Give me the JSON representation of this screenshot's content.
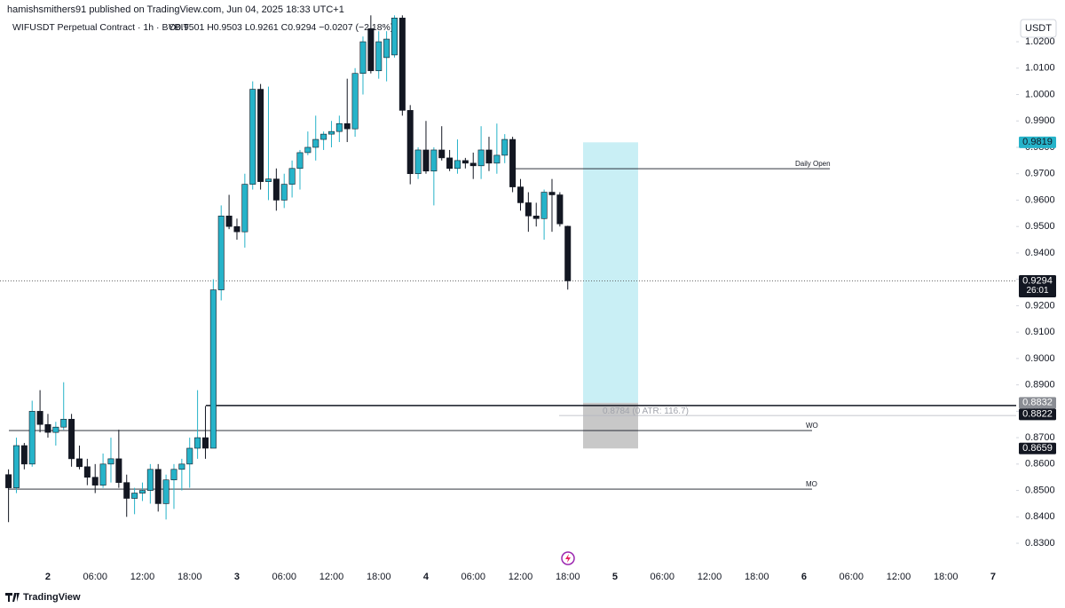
{
  "header": "hamishsmithers91 published on TradingView.com, Jun 04, 2025 18:33 UTC+1",
  "footer": "TradingView",
  "chart_data": {
    "type": "candlestick",
    "title": "WIFUSDT Perpetual Contract · 1h · BYBIT",
    "legend": "O0.9501 H0.9503 L0.9261 C0.9294 −0.0207 (−2.18%)",
    "currency": "USDT",
    "categories": [
      null,
      null,
      null,
      null,
      null,
      "2",
      null,
      null,
      null,
      null,
      null,
      "06:00",
      null,
      null,
      null,
      null,
      null,
      "12:00",
      null,
      null,
      null,
      null,
      null,
      "18:00",
      null,
      null,
      null,
      null,
      null,
      "3",
      null,
      null,
      null,
      null,
      null,
      "06:00",
      null,
      null,
      null,
      null,
      null,
      "12:00",
      null,
      null,
      null,
      null,
      null,
      "18:00",
      null,
      null,
      null,
      null,
      null,
      "4",
      null,
      null,
      null,
      null,
      null,
      "06:00",
      null,
      null,
      null,
      null,
      null,
      "12:00",
      null,
      null,
      null,
      null,
      null,
      "18:00",
      null,
      null,
      null,
      null,
      null,
      "5",
      null,
      null,
      null,
      null,
      null,
      "06:00",
      null,
      null,
      null,
      null,
      null,
      "12:00",
      null,
      null,
      null,
      null,
      null,
      "18:00",
      null,
      null,
      null,
      null,
      null,
      "6",
      null,
      null,
      null,
      null,
      null,
      "06:00",
      null,
      null,
      null,
      null,
      null,
      "12:00",
      null,
      null,
      null,
      null,
      null,
      "18:00",
      null,
      null,
      null,
      null,
      null,
      "7",
      null,
      null
    ],
    "open": [
      0.856,
      0.851,
      0.867,
      0.86,
      0.88,
      0.875,
      0.872,
      0.874,
      0.877,
      0.862,
      0.859,
      0.855,
      0.852,
      0.86,
      0.862,
      0.853,
      0.847,
      0.849,
      0.85,
      0.858,
      0.845,
      0.854,
      0.858,
      0.86,
      0.866,
      0.87,
      0.866,
      0.926,
      0.954,
      0.95,
      0.948,
      0.966,
      1.002,
      0.967,
      0.968,
      0.96,
      0.966,
      0.972,
      0.978,
      0.98,
      0.983,
      0.985,
      0.986,
      0.989,
      0.987,
      1.008,
      1.025,
      1.009,
      1.014,
      1.015,
      1.029,
      0.994,
      0.97,
      0.979,
      0.971,
      0.979,
      0.976,
      0.972,
      0.975,
      0.974,
      0.973,
      0.979,
      0.974,
      0.977,
      0.983,
      0.965,
      0.959,
      0.954,
      0.953,
      0.963,
      0.962,
      0.9501,
      null,
      null,
      null,
      null,
      null,
      null,
      null,
      null,
      null,
      null,
      null,
      null,
      null,
      null,
      null,
      null,
      null,
      null,
      null,
      null,
      null,
      null,
      null,
      null,
      null,
      null,
      null,
      null,
      null,
      null,
      null,
      null,
      null,
      null,
      null,
      null,
      null,
      null,
      null,
      null,
      null,
      null,
      null,
      null,
      null,
      null,
      null,
      null,
      null,
      null,
      null,
      null,
      null,
      null,
      null,
      null
    ],
    "high": [
      0.858,
      0.87,
      0.868,
      0.884,
      0.888,
      0.879,
      0.876,
      0.891,
      0.879,
      0.867,
      0.862,
      0.86,
      0.864,
      0.87,
      0.873,
      0.856,
      0.851,
      0.853,
      0.86,
      0.86,
      0.856,
      0.86,
      0.862,
      0.87,
      0.888,
      0.882,
      0.93,
      0.958,
      0.962,
      0.953,
      0.97,
      1.005,
      1.004,
      1.003,
      0.972,
      0.97,
      0.975,
      0.979,
      0.986,
      0.992,
      0.986,
      0.99,
      0.992,
      1.006,
      1.01,
      1.022,
      1.03,
      1.024,
      1.024,
      1.03,
      1.03,
      0.996,
      0.98,
      0.99,
      0.98,
      0.988,
      0.979,
      0.983,
      0.976,
      0.978,
      0.988,
      0.984,
      0.989,
      0.985,
      0.984,
      0.968,
      0.963,
      0.959,
      0.964,
      0.968,
      0.963,
      0.9503,
      null,
      null,
      null,
      null,
      null,
      null,
      null,
      null,
      null,
      null,
      null,
      null,
      null,
      null,
      null,
      null,
      null,
      null,
      null,
      null,
      null,
      null,
      null,
      null,
      null,
      null,
      null,
      null,
      null,
      null,
      null,
      null,
      null,
      null,
      null,
      null,
      null,
      null,
      null,
      null,
      null,
      null,
      null,
      null,
      null,
      null,
      null,
      null,
      null,
      null,
      null,
      null,
      null,
      null,
      null,
      null
    ],
    "low": [
      0.838,
      0.849,
      0.858,
      0.859,
      0.872,
      0.87,
      0.867,
      0.873,
      0.859,
      0.858,
      0.852,
      0.849,
      0.851,
      0.853,
      0.851,
      0.84,
      0.841,
      0.846,
      0.845,
      0.842,
      0.839,
      0.843,
      0.85,
      0.851,
      0.862,
      0.862,
      0.866,
      0.922,
      0.949,
      0.945,
      0.942,
      0.964,
      0.964,
      0.96,
      0.956,
      0.957,
      0.961,
      0.964,
      0.977,
      0.975,
      0.979,
      0.98,
      0.982,
      0.982,
      0.984,
      1.0,
      1.008,
      1.006,
      1.005,
      1.014,
      0.992,
      0.966,
      0.968,
      0.97,
      0.958,
      0.975,
      0.971,
      0.97,
      0.972,
      0.968,
      0.968,
      0.971,
      0.97,
      0.974,
      0.963,
      0.956,
      0.948,
      0.95,
      0.945,
      0.948,
      0.95,
      0.9261,
      null,
      null,
      null,
      null,
      null,
      null,
      null,
      null,
      null,
      null,
      null,
      null,
      null,
      null,
      null,
      null,
      null,
      null,
      null,
      null,
      null,
      null,
      null,
      null,
      null,
      null,
      null,
      null,
      null,
      null,
      null,
      null,
      null,
      null,
      null,
      null,
      null,
      null,
      null,
      null,
      null,
      null,
      null,
      null,
      null,
      null,
      null,
      null,
      null,
      null,
      null,
      null,
      null,
      null,
      null,
      null
    ],
    "close": [
      0.851,
      0.867,
      0.86,
      0.88,
      0.875,
      0.872,
      0.874,
      0.877,
      0.862,
      0.859,
      0.855,
      0.852,
      0.86,
      0.862,
      0.853,
      0.847,
      0.849,
      0.85,
      0.858,
      0.845,
      0.854,
      0.858,
      0.86,
      0.866,
      0.87,
      0.866,
      0.926,
      0.954,
      0.95,
      0.948,
      0.966,
      1.002,
      0.967,
      0.968,
      0.96,
      0.966,
      0.972,
      0.978,
      0.98,
      0.983,
      0.985,
      0.986,
      0.989,
      0.987,
      1.008,
      1.02,
      1.009,
      1.02,
      1.021,
      1.029,
      0.994,
      0.97,
      0.979,
      0.971,
      0.979,
      0.976,
      0.972,
      0.975,
      0.974,
      0.973,
      0.979,
      0.974,
      0.977,
      0.983,
      0.965,
      0.959,
      0.954,
      0.953,
      0.963,
      0.962,
      0.951,
      0.9294,
      null,
      null,
      null,
      null,
      null,
      null,
      null,
      null,
      null,
      null,
      null,
      null,
      null,
      null,
      null,
      null,
      null,
      null,
      null,
      null,
      null,
      null,
      null,
      null,
      null,
      null,
      null,
      null,
      null,
      null,
      null,
      null,
      null,
      null,
      null,
      null,
      null,
      null,
      null,
      null,
      null,
      null,
      null,
      null,
      null,
      null,
      null,
      null,
      null,
      null,
      null,
      null,
      null,
      null,
      null,
      null
    ],
    "up_color": "#26b3c9",
    "down_color": "#131722",
    "ylim": [
      0.8206,
      1.0301
    ],
    "yticks": [
      {
        "value": 1.02,
        "label": "1.0200"
      },
      {
        "value": 1.01,
        "label": "1.0100"
      },
      {
        "value": 1.0,
        "label": "1.0000"
      },
      {
        "value": 0.99,
        "label": "0.9900"
      },
      {
        "value": 0.98,
        "label": "0.9800"
      },
      {
        "value": 0.97,
        "label": "0.9700"
      },
      {
        "value": 0.96,
        "label": "0.9600"
      },
      {
        "value": 0.95,
        "label": "0.9500"
      },
      {
        "value": 0.94,
        "label": "0.9400"
      },
      {
        "value": 0.93,
        "label": "0.9300"
      },
      {
        "value": 0.92,
        "label": "0.9200"
      },
      {
        "value": 0.91,
        "label": "0.9100"
      },
      {
        "value": 0.9,
        "label": "0.9000"
      },
      {
        "value": 0.89,
        "label": "0.8900"
      },
      {
        "value": 0.88,
        "label": "0.8800"
      },
      {
        "value": 0.87,
        "label": "0.8700"
      },
      {
        "value": 0.86,
        "label": "0.8600"
      },
      {
        "value": 0.85,
        "label": "0.8500"
      },
      {
        "value": 0.84,
        "label": "0.8400"
      },
      {
        "value": 0.83,
        "label": "0.8300"
      }
    ],
    "grid": false,
    "levels": [
      {
        "name": "Daily Open",
        "value": 0.9719
      },
      {
        "name": "WO",
        "value": 0.8727
      },
      {
        "name": "MO",
        "value": 0.8505
      }
    ],
    "position": {
      "target": 0.9819,
      "entry": 0.8832,
      "stop": 0.8659,
      "target_color": "#c9eff5",
      "stop_color": "#c8c8c8"
    },
    "lines": [
      {
        "value": 0.8822
      }
    ],
    "atr_line": {
      "value": 0.8784,
      "label": "0.8784 (0 ATR: 116.7)"
    },
    "last_price": 0.9294,
    "countdown": "26:01"
  }
}
